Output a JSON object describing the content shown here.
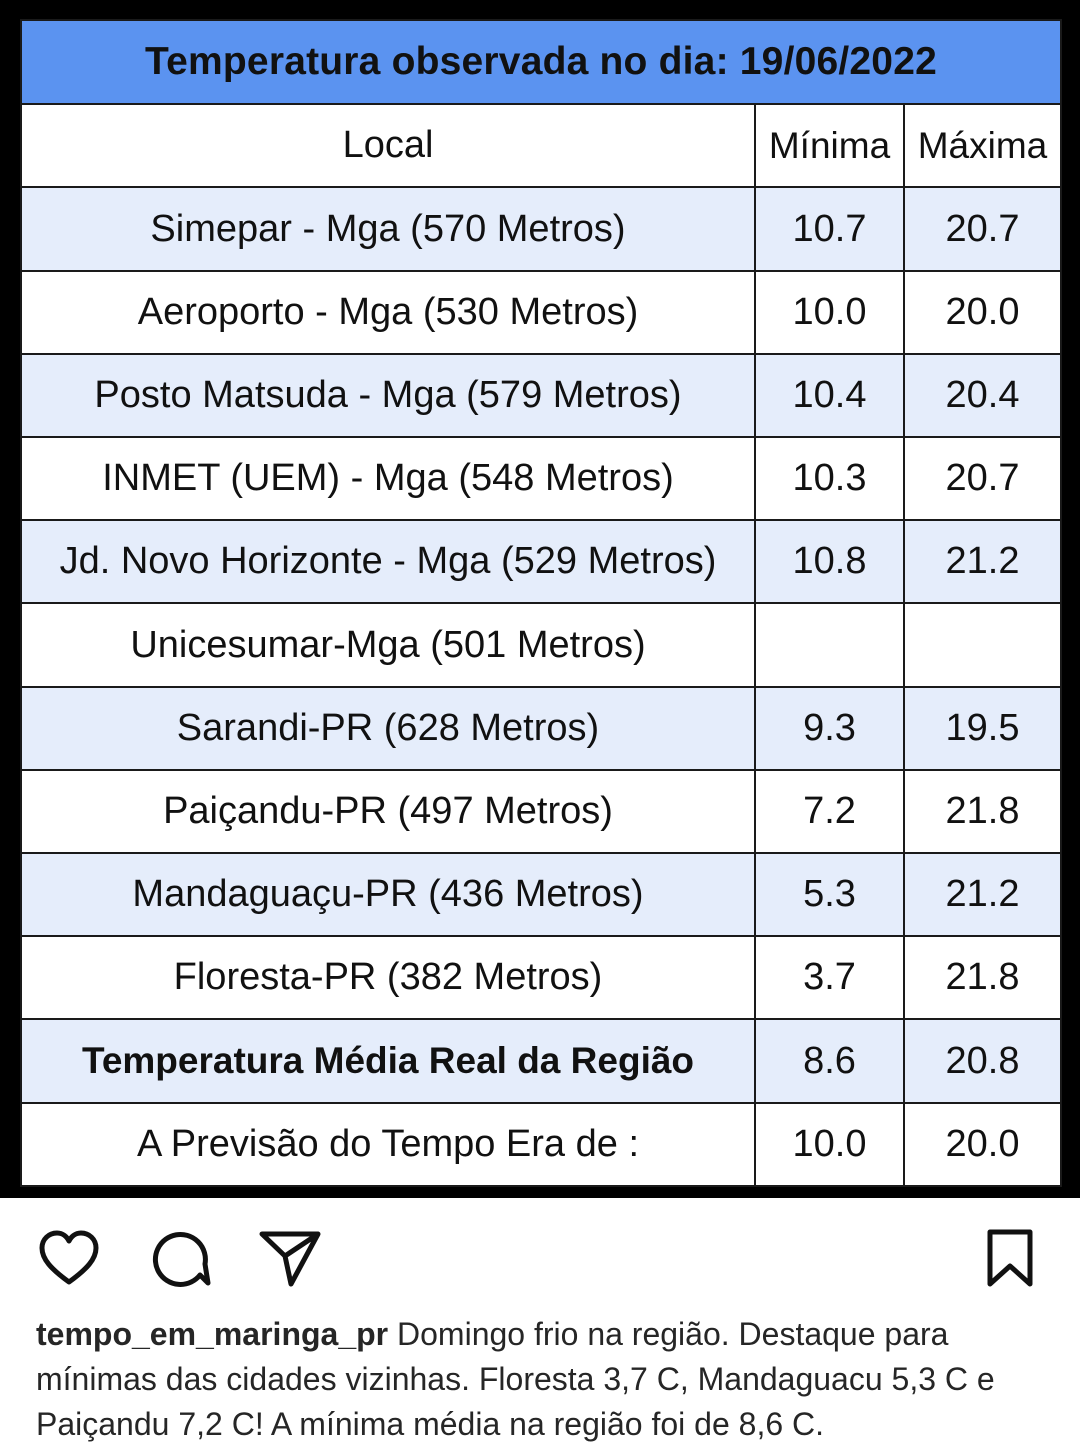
{
  "table": {
    "title": "Temperatura observada no dia: 19/06/2022",
    "headers": {
      "local": "Local",
      "min": "Mínima",
      "max": "Máxima"
    },
    "rows": [
      {
        "local": "Simepar - Mga  (570 Metros)",
        "min": "10.7",
        "max": "20.7"
      },
      {
        "local": "Aeroporto - Mga (530 Metros)",
        "min": "10.0",
        "max": "20.0"
      },
      {
        "local": "Posto Matsuda - Mga (579 Metros)",
        "min": "10.4",
        "max": "20.4"
      },
      {
        "local": "INMET (UEM) - Mga  (548 Metros)",
        "min": "10.3",
        "max": "20.7"
      },
      {
        "local": "Jd. Novo Horizonte - Mga (529 Metros)",
        "min": "10.8",
        "max": "21.2"
      },
      {
        "local": "Unicesumar-Mga (501 Metros)",
        "min": "",
        "max": ""
      },
      {
        "local": "Sarandi-PR  (628 Metros)",
        "min": "9.3",
        "max": "19.5"
      },
      {
        "local": "Paiçandu-PR (497 Metros)",
        "min": "7.2",
        "max": "21.8"
      },
      {
        "local": "Mandaguaçu-PR (436 Metros)",
        "min": "5.3",
        "max": "21.2"
      },
      {
        "local": "Floresta-PR (382 Metros)",
        "min": "3.7",
        "max": "21.8"
      }
    ],
    "average": {
      "local": "Temperatura Média Real da Região",
      "min": "8.6",
      "max": "20.8"
    },
    "forecast": {
      "local": "A Previsão do Tempo Era de :",
      "min": "10.0",
      "max": "20.0"
    }
  },
  "actions": {
    "like_icon": "heart-icon",
    "comment_icon": "comment-icon",
    "share_icon": "paper-plane-icon",
    "save_icon": "bookmark-icon"
  },
  "caption": {
    "username": "tempo_em_maringa_pr",
    "text": "Domingo frio na região. Destaque para mínimas das cidades vizinhas. Floresta 3,7 C, Mandaguacu 5,3 C e Paiçandu 7,2 C! A mínima média na região foi de 8,6 C."
  },
  "colors": {
    "title_bg": "#5b93f0",
    "row_shade": "#e5edfb",
    "min_text": "#1010c8",
    "max_text": "#d01010"
  }
}
